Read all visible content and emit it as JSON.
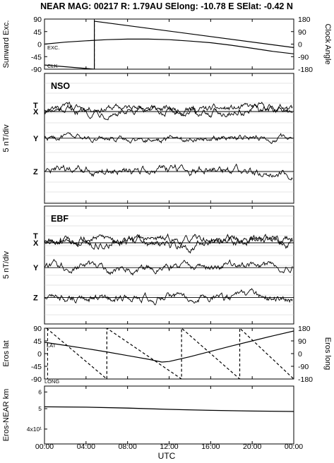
{
  "header": {
    "title": "NEAR MAG: 00217  R: 1.79AU  SElong:  -10.78 E  SElat:   -0.42 N"
  },
  "x_axis": {
    "label": "UTC",
    "ticks": [
      "00:00",
      "04:00",
      "08:00",
      "12:00",
      "16:00",
      "20:00",
      "00:00"
    ],
    "tick_hours": [
      0,
      4,
      8,
      12,
      16,
      20,
      24
    ],
    "range_hours": [
      0,
      24
    ]
  },
  "colors": {
    "ink": "#000000",
    "grid": "#cccccc",
    "background": "#ffffff"
  },
  "chart_data": [
    {
      "type": "line",
      "panel": "sunward-clock",
      "ylabel_left": "Sunward Exc.",
      "ylabel_right": "Clock Angle",
      "ylim_left": [
        -90,
        90
      ],
      "ylim_right": [
        -180,
        180
      ],
      "left_ticks": [
        "90",
        "45",
        "0",
        "-45",
        "-90"
      ],
      "right_ticks": [
        "180",
        "90",
        "0",
        "-90",
        "-180"
      ],
      "annotations": [
        "EXC.",
        "CLK"
      ],
      "series": [
        {
          "key": "exc",
          "axis": "left",
          "style": "solid",
          "x": [
            0,
            2,
            4,
            6,
            8,
            10,
            12,
            14,
            16,
            18,
            20,
            22,
            24
          ],
          "y": [
            0,
            7,
            12,
            16,
            18,
            18,
            16,
            11,
            5,
            -4,
            -15,
            -26,
            -35
          ]
        },
        {
          "key": "clk",
          "axis": "right",
          "style": "solid",
          "x": [
            0,
            4.8,
            4.8,
            24
          ],
          "y": [
            -150,
            -180,
            165,
            -25
          ]
        }
      ],
      "vertical_dashed_at_hours": [
        4.8
      ]
    },
    {
      "type": "line",
      "panel": "nso",
      "label": "NSO",
      "ylabel": "5 nT/div",
      "components": [
        {
          "name": "T",
          "level": 0.93,
          "noise": 1.4
        },
        {
          "name": "X",
          "level": 0.0,
          "noise": 1.6
        },
        {
          "name": "Y",
          "level": -8.6,
          "noise": 1.2
        },
        {
          "name": "Z",
          "level": -19.3,
          "noise": 1.7
        }
      ]
    },
    {
      "type": "line",
      "panel": "ebf",
      "label": "EBF",
      "ylabel": "5 nT/div",
      "components": [
        {
          "name": "T",
          "level": 1.1,
          "noise": 1.5
        },
        {
          "name": "X",
          "level": 0.0,
          "noise": 1.8
        },
        {
          "name": "Y",
          "level": -8.0,
          "noise": 1.5
        },
        {
          "name": "Z",
          "level": -17.6,
          "noise": 1.6
        }
      ]
    },
    {
      "type": "line",
      "panel": "eros-lat-long",
      "ylabel_left": "Eros lat",
      "ylabel_right": "Eros long",
      "ylim_left": [
        -90,
        90
      ],
      "ylim_right": [
        -180,
        180
      ],
      "left_ticks": [
        "90",
        "45",
        "0",
        "-45",
        "-90"
      ],
      "right_ticks": [
        "180",
        "90",
        "0",
        "-90",
        "-180"
      ],
      "annotations": [
        "LAT",
        "LONG"
      ],
      "series": [
        {
          "key": "lat",
          "axis": "left",
          "style": "solid",
          "x": [
            0,
            2,
            4,
            6,
            8,
            10,
            11.3,
            12,
            14,
            16,
            18,
            20,
            22,
            24
          ],
          "y": [
            40,
            29,
            18,
            6,
            -7,
            -20,
            -30,
            -28,
            -11,
            8,
            27,
            45,
            63,
            80
          ]
        },
        {
          "key": "long",
          "axis": "right",
          "style": "dashed",
          "x": [
            0.2,
            6,
            6,
            13.2,
            13.2,
            18.8,
            18.8,
            24
          ],
          "y": [
            180,
            -180,
            180,
            -180,
            180,
            -180,
            180,
            -180
          ]
        }
      ],
      "vertical_dashed_at_hours": [
        0.3
      ]
    },
    {
      "type": "line",
      "panel": "eros-near-km",
      "ylabel": "Eros-NEAR km",
      "y_log": true,
      "ytick_labels": [
        "6",
        "5",
        "4x10¹"
      ],
      "ytick_values": [
        60,
        50,
        40
      ],
      "ylim": [
        34,
        64
      ],
      "series": [
        {
          "key": "distance",
          "x": [
            0,
            4,
            8,
            12,
            16,
            20,
            24
          ],
          "y": [
            51.0,
            50.8,
            50.3,
            49.6,
            49.1,
            48.7,
            48.5
          ]
        }
      ]
    }
  ]
}
